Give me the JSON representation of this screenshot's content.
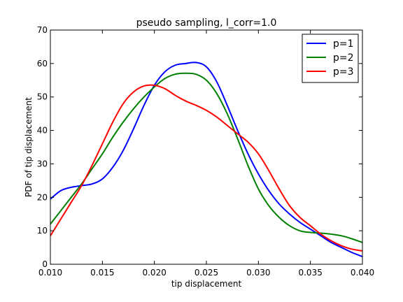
{
  "chart_data": {
    "type": "line",
    "title": "pseudo sampling, l_corr=1.0",
    "xlabel": "tip displacement",
    "ylabel": "PDF of tip displacement",
    "xlim": [
      0.01,
      0.04
    ],
    "ylim": [
      0,
      70
    ],
    "xticks": [
      0.01,
      0.015,
      0.02,
      0.025,
      0.03,
      0.035,
      0.04
    ],
    "xtick_labels": [
      "0.010",
      "0.015",
      "0.020",
      "0.025",
      "0.030",
      "0.035",
      "0.040"
    ],
    "yticks": [
      0,
      10,
      20,
      30,
      40,
      50,
      60,
      70
    ],
    "ytick_labels": [
      "0",
      "10",
      "20",
      "30",
      "40",
      "50",
      "60",
      "70"
    ],
    "grid": false,
    "legend_position": "top-right",
    "x": [
      0.01,
      0.011,
      0.012,
      0.013,
      0.014,
      0.015,
      0.016,
      0.017,
      0.018,
      0.019,
      0.02,
      0.021,
      0.022,
      0.023,
      0.024,
      0.025,
      0.026,
      0.027,
      0.028,
      0.029,
      0.03,
      0.031,
      0.032,
      0.033,
      0.034,
      0.035,
      0.036,
      0.037,
      0.038,
      0.039,
      0.04
    ],
    "series": [
      {
        "name": "p=1",
        "color": "#0000ff",
        "values": [
          19.5,
          22.0,
          23.0,
          23.5,
          24.0,
          25.5,
          29.0,
          34.0,
          40.5,
          47.5,
          53.5,
          57.5,
          59.5,
          60.0,
          60.3,
          59.0,
          54.5,
          47.5,
          40.0,
          33.0,
          27.0,
          22.0,
          18.0,
          15.0,
          12.5,
          10.5,
          8.5,
          6.5,
          5.0,
          3.5,
          2.3
        ]
      },
      {
        "name": "p=2",
        "color": "#008000",
        "values": [
          12.0,
          16.0,
          20.0,
          24.0,
          28.5,
          33.0,
          38.0,
          42.5,
          46.5,
          50.0,
          53.0,
          55.5,
          56.8,
          57.1,
          56.8,
          55.0,
          51.0,
          45.0,
          37.5,
          29.5,
          22.5,
          17.5,
          14.0,
          11.5,
          10.0,
          9.5,
          9.3,
          9.0,
          8.5,
          7.6,
          6.5
        ]
      },
      {
        "name": "p=3",
        "color": "#ff0000",
        "values": [
          8.5,
          13.5,
          18.5,
          23.5,
          29.5,
          36.0,
          42.5,
          48.0,
          51.5,
          53.3,
          53.5,
          52.5,
          50.5,
          48.8,
          47.5,
          46.0,
          44.0,
          41.5,
          39.0,
          36.5,
          33.0,
          28.0,
          22.5,
          17.5,
          14.0,
          11.5,
          9.0,
          7.0,
          5.5,
          4.5,
          4.0
        ]
      }
    ]
  }
}
